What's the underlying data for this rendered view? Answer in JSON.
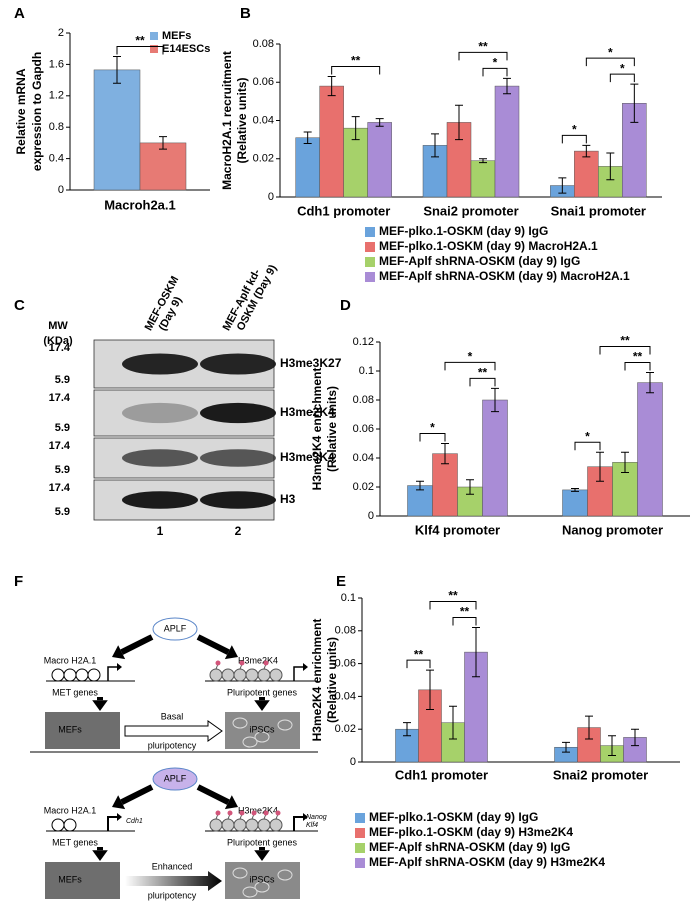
{
  "chart_data": [
    {
      "type": "bar",
      "panel": "A",
      "categories": [
        "Macroh2a.1"
      ],
      "series": [
        {
          "name": "MEFs",
          "color": "#7fb0e0",
          "values": [
            1.53
          ],
          "errors": [
            0.17
          ]
        },
        {
          "name": "E14ESCs",
          "color": "#e77a74",
          "values": [
            0.6
          ],
          "errors": [
            0.08
          ]
        }
      ],
      "ylabel": [
        "Relative mRNA",
        "expression to Gapdh"
      ],
      "ylim": [
        0,
        2
      ],
      "yticks": [
        0,
        0.4,
        0.8,
        1.2,
        1.6,
        2
      ],
      "annotations": [
        "**"
      ]
    },
    {
      "type": "bar",
      "panel": "B",
      "categories": [
        "Cdh1 promoter",
        "Snai2 promoter",
        "Snai1 promoter"
      ],
      "series": [
        {
          "name": "MEF-plko.1-OSKM (day 9) IgG",
          "color": "#6aa3dc",
          "values": [
            0.031,
            0.027,
            0.006
          ],
          "errors": [
            0.003,
            0.006,
            0.004
          ]
        },
        {
          "name": "MEF-plko.1-OSKM (day 9) MacroH2A.1",
          "color": "#e8706d",
          "values": [
            0.058,
            0.039,
            0.024
          ],
          "errors": [
            0.005,
            0.009,
            0.003
          ]
        },
        {
          "name": "MEF-Aplf shRNA-OSKM (day 9) IgG",
          "color": "#a6d16a",
          "values": [
            0.036,
            0.019,
            0.016
          ],
          "errors": [
            0.006,
            0.001,
            0.007
          ]
        },
        {
          "name": "MEF-Aplf shRNA-OSKM (day 9) MacroH2A.1",
          "color": "#a98cd6",
          "values": [
            0.039,
            0.058,
            0.049
          ],
          "errors": [
            0.002,
            0.004,
            0.01
          ]
        }
      ],
      "ylabel": [
        "MacroH2A.1 recruitment",
        "(Relative units)"
      ],
      "ylim": [
        0,
        0.08
      ],
      "yticks": [
        0,
        0.02,
        0.04,
        0.06,
        0.08
      ],
      "annotations": [
        "**",
        "*",
        "**",
        "*",
        "*",
        "*"
      ]
    },
    {
      "type": "bar",
      "panel": "D",
      "categories": [
        "Klf4 promoter",
        "Nanog promoter"
      ],
      "series": [
        {
          "color": "#6aa3dc",
          "values": [
            0.021,
            0.018
          ],
          "errors": [
            0.003,
            0.001
          ]
        },
        {
          "color": "#e8706d",
          "values": [
            0.043,
            0.034
          ],
          "errors": [
            0.007,
            0.01
          ]
        },
        {
          "color": "#a6d16a",
          "values": [
            0.02,
            0.037
          ],
          "errors": [
            0.005,
            0.007
          ]
        },
        {
          "color": "#a98cd6",
          "values": [
            0.08,
            0.092
          ],
          "errors": [
            0.008,
            0.007
          ]
        }
      ],
      "ylabel": [
        "H3me2K4 enrichment",
        "(Relative units)"
      ],
      "ylim": [
        0,
        0.12
      ],
      "yticks": [
        0,
        0.02,
        0.04,
        0.06,
        0.08,
        0.1,
        0.12
      ],
      "annotations": [
        "*",
        "**",
        "*",
        "*",
        "**",
        "**"
      ]
    },
    {
      "type": "bar",
      "panel": "E",
      "categories": [
        "Cdh1 promoter",
        "Snai2 promoter"
      ],
      "series": [
        {
          "name": "MEF-plko.1-OSKM (day 9) IgG",
          "color": "#6aa3dc",
          "values": [
            0.02,
            0.009
          ],
          "errors": [
            0.004,
            0.003
          ]
        },
        {
          "name": "MEF-plko.1-OSKM (day 9) H3me2K4",
          "color": "#e8706d",
          "values": [
            0.044,
            0.021
          ],
          "errors": [
            0.012,
            0.007
          ]
        },
        {
          "name": "MEF-Aplf shRNA-OSKM (day 9) IgG",
          "color": "#a6d16a",
          "values": [
            0.024,
            0.01
          ],
          "errors": [
            0.01,
            0.006
          ]
        },
        {
          "name": "MEF-Aplf shRNA-OSKM (day 9) H3me2K4",
          "color": "#a98cd6",
          "values": [
            0.067,
            0.015
          ],
          "errors": [
            0.015,
            0.005
          ]
        }
      ],
      "ylabel": [
        "H3me2K4 enrichment",
        "(Relative units)"
      ],
      "ylim": [
        0,
        0.1
      ],
      "yticks": [
        0,
        0.02,
        0.04,
        0.06,
        0.08,
        0.1
      ],
      "annotations": [
        "**",
        "**",
        "**"
      ]
    }
  ],
  "blot": {
    "panel": "C",
    "mw_label": [
      "MW",
      "(KDa)"
    ],
    "lanes": [
      [
        "MEF-OSKM",
        "(Day 9)"
      ],
      [
        "MEF-Aplf kd-",
        "OSKM (Day 9)"
      ]
    ],
    "rows": [
      {
        "markers": [
          "17.4",
          "5.9"
        ],
        "label": "H3me3K27"
      },
      {
        "markers": [
          "17.4",
          "5.9"
        ],
        "label": "H3me2K4"
      },
      {
        "markers": [
          "17.4",
          "5.9"
        ],
        "label": "H3me3K4"
      },
      {
        "markers": [
          "17.4",
          "5.9"
        ],
        "label": "H3"
      }
    ],
    "lane_numbers": [
      "1",
      "2"
    ]
  },
  "diagram": {
    "panel": "F",
    "top": {
      "enzyme": "APLF",
      "left_mark": "Macro H2A.1",
      "right_mark": "H3me2K4",
      "left_genes": "MET genes",
      "right_genes": "Pluripotent genes",
      "start_cell": "MEFs",
      "arrow_label": "Basal",
      "process": "pluripotency",
      "end_cell": "iPSCs"
    },
    "bottom": {
      "enzyme": "APLF",
      "left_mark": "Macro H2A.1",
      "right_mark": "H3me2K4",
      "left_genes": "MET genes",
      "right_genes": "Pluripotent genes",
      "left_gene_names": [
        "Cdh1"
      ],
      "right_gene_names": [
        "Nanog",
        "Klf4"
      ],
      "start_cell": "MEFs",
      "arrow_label": "Enhanced",
      "process": "pluripotency",
      "end_cell": "iPSCs"
    }
  }
}
